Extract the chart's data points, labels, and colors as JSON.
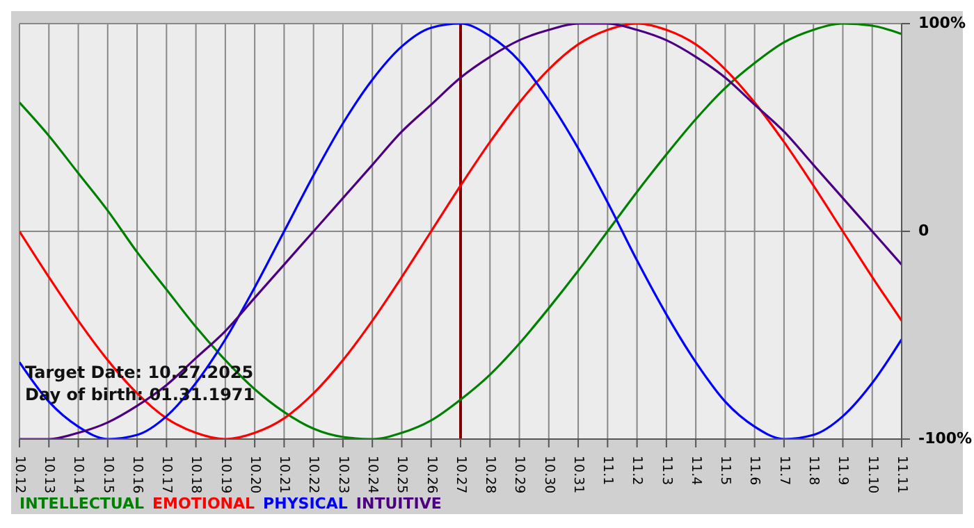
{
  "chart_data": {
    "type": "line",
    "categories": [
      "10.12",
      "10.13",
      "10.14",
      "10.15",
      "10.16",
      "10.17",
      "10.18",
      "10.19",
      "10.20",
      "10.21",
      "10.22",
      "10.23",
      "10.24",
      "10.25",
      "10.26",
      "10.27",
      "10.28",
      "10.29",
      "10.30",
      "10.31",
      "11.1",
      "11.2",
      "11.3",
      "11.4",
      "11.5",
      "11.6",
      "11.7",
      "11.8",
      "11.9",
      "11.10",
      "11.11"
    ],
    "series": [
      {
        "name": "INTELLECTUAL",
        "color": "#008000",
        "values": [
          62,
          46,
          28,
          10,
          -10,
          -28,
          -46,
          -62,
          -76,
          -87,
          -95,
          -99,
          -100,
          -97,
          -91,
          -81,
          -69,
          -54,
          -37,
          -19,
          0,
          19,
          37,
          54,
          69,
          81,
          91,
          97,
          100,
          99,
          95
        ]
      },
      {
        "name": "EMOTIONAL",
        "color": "#ff0000",
        "values": [
          0,
          -22,
          -43,
          -62,
          -78,
          -90,
          -97,
          -100,
          -97,
          -90,
          -78,
          -62,
          -43,
          -22,
          0,
          22,
          43,
          62,
          78,
          90,
          97,
          100,
          97,
          90,
          78,
          62,
          43,
          22,
          0,
          -22,
          -43
        ]
      },
      {
        "name": "PHYSICAL",
        "color": "#0000ff",
        "values": [
          -63,
          -82,
          -94,
          -100,
          -98,
          -89,
          -73,
          -52,
          -27,
          0,
          27,
          52,
          73,
          89,
          98,
          100,
          94,
          82,
          63,
          40,
          14,
          -14,
          -40,
          -63,
          -82,
          -94,
          -100,
          -98,
          -89,
          -73,
          -52
        ]
      },
      {
        "name": "INTUITIVE",
        "color": "#4b0082",
        "values": [
          -100,
          -100,
          -97,
          -92,
          -84,
          -74,
          -61,
          -48,
          -32,
          -16,
          0,
          16,
          32,
          48,
          61,
          74,
          84,
          92,
          97,
          100,
          100,
          97,
          92,
          84,
          74,
          61,
          48,
          32,
          16,
          0,
          -16
        ]
      }
    ],
    "ylim": [
      -100,
      100
    ],
    "yticks": [
      {
        "value": -100,
        "label": "-100%"
      },
      {
        "value": 0,
        "label": "0"
      },
      {
        "value": 100,
        "label": "100%"
      }
    ],
    "ref_lines": [
      {
        "axis": "x",
        "value": "10.27",
        "color": "#800000"
      }
    ],
    "annotations": [
      "Target Date: 10.27.2025",
      "Day of birth: 01.31.1971"
    ],
    "grid": true,
    "legend": "bottom",
    "marker": "none",
    "line_style": "solid"
  }
}
